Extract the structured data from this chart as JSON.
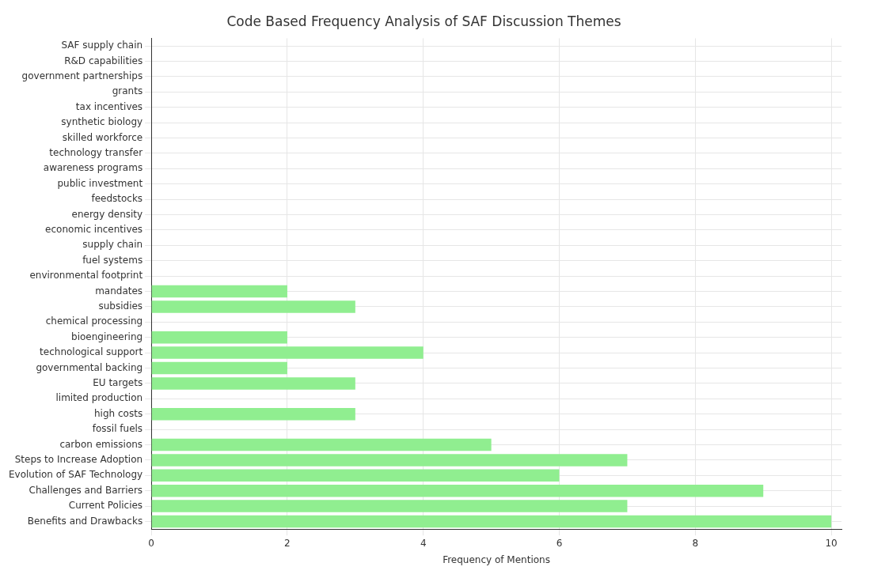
{
  "chart_data": {
    "type": "bar",
    "orientation": "horizontal",
    "title": "Code Based Frequency Analysis of SAF Discussion Themes",
    "xlabel": "Frequency of Mentions",
    "categories": [
      "SAF supply chain",
      "R&D capabilities",
      "government partnerships",
      "grants",
      "tax incentives",
      "synthetic biology",
      "skilled workforce",
      "technology transfer",
      "awareness programs",
      "public investment",
      "feedstocks",
      "energy density",
      "economic incentives",
      "supply chain",
      "fuel systems",
      "environmental footprint",
      "mandates",
      "subsidies",
      "chemical processing",
      "bioengineering",
      "technological support",
      "governmental backing",
      "EU targets",
      "limited production",
      "high costs",
      "fossil fuels",
      "carbon emissions",
      "Steps to Increase Adoption",
      "Evolution of SAF Technology",
      "Challenges and Barriers",
      "Current Policies",
      "Benefits and Drawbacks"
    ],
    "values": [
      0,
      0,
      0,
      0,
      0,
      0,
      0,
      0,
      0,
      0,
      0,
      0,
      0,
      0,
      0,
      0,
      2,
      3,
      0,
      2,
      4,
      2,
      3,
      0,
      3,
      0,
      5,
      7,
      6,
      9,
      7,
      10
    ],
    "color": "#90ee90",
    "xlim": [
      0,
      10.15
    ],
    "xticks": [
      0,
      2,
      4,
      6,
      8,
      10
    ],
    "grid": true,
    "legend": false
  }
}
